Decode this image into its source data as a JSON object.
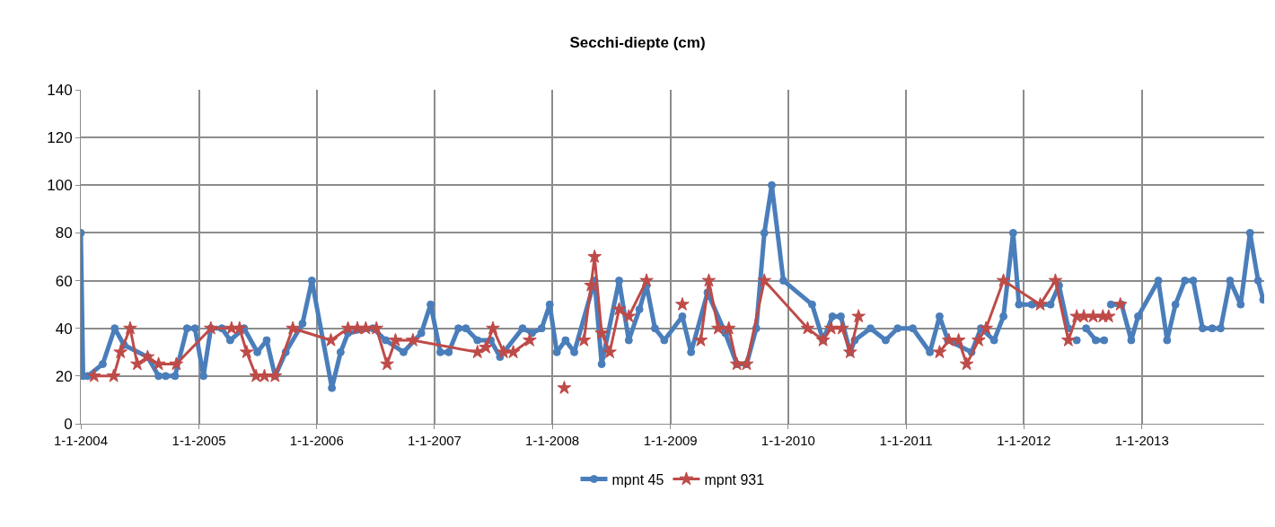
{
  "chart_data": {
    "type": "line",
    "title": "Secchi-diepte (cm)",
    "xlim": [
      "2004-01-01",
      "2014-01-15"
    ],
    "xticks": [
      {
        "value": "2004-01-01",
        "label": "1-1-2004"
      },
      {
        "value": "2005-01-01",
        "label": "1-1-2005"
      },
      {
        "value": "2006-01-01",
        "label": "1-1-2006"
      },
      {
        "value": "2007-01-01",
        "label": "1-1-2007"
      },
      {
        "value": "2008-01-01",
        "label": "1-1-2008"
      },
      {
        "value": "2009-01-01",
        "label": "1-1-2009"
      },
      {
        "value": "2010-01-01",
        "label": "1-1-2010"
      },
      {
        "value": "2011-01-01",
        "label": "1-1-2011"
      },
      {
        "value": "2012-01-01",
        "label": "1-1-2012"
      },
      {
        "value": "2013-01-01",
        "label": "1-1-2013"
      }
    ],
    "ylim": [
      0,
      140
    ],
    "yticks": [
      0,
      20,
      40,
      60,
      80,
      100,
      120,
      140
    ],
    "grid": true,
    "legend": "bottom",
    "series": [
      {
        "name": "mpnt 45",
        "color": "#4a7ebb",
        "marker": "circle",
        "x": [
          "2004-01-01",
          "2004-01-08",
          "2004-01-22",
          "2004-03-09",
          "2004-04-15",
          "2004-05-14",
          "2004-07-26",
          "2004-08-29",
          "2004-09-20",
          "2004-10-19",
          "2004-11-25",
          "2004-12-20",
          "2005-01-15",
          "2005-02-07",
          "2005-03-13",
          "2005-04-08",
          "2005-05-21",
          "2005-07-01",
          "2005-07-30",
          "2005-08-25",
          "2005-09-27",
          "2005-11-18",
          "2005-12-17",
          "2006-02-17",
          "2006-03-16",
          "2006-04-08",
          "2006-06-24",
          "2006-08-03",
          "2006-09-27",
          "2006-11-21",
          "2006-12-20",
          "2007-01-19",
          "2007-02-14",
          "2007-03-16",
          "2007-04-08",
          "2007-05-14",
          "2007-06-24",
          "2007-07-23",
          "2007-10-01",
          "2007-10-30",
          "2007-11-29",
          "2007-12-24",
          "2008-01-15",
          "2008-02-11",
          "2008-03-09",
          "2008-05-11",
          "2008-06-02",
          "2008-07-26",
          "2008-08-25",
          "2008-09-27",
          "2008-10-19",
          "2008-11-14",
          "2008-12-13",
          "2009-02-07",
          "2009-03-06",
          "2009-04-26",
          "2009-06-20",
          "2009-07-26",
          "2009-08-25",
          "2009-09-24",
          "2009-10-19",
          "2009-11-11",
          "2009-12-17",
          "2010-03-16",
          "2010-04-19",
          "2010-05-18",
          "2010-06-13",
          "2010-07-12",
          "2010-07-26",
          "2010-09-13",
          "2010-10-30",
          "2010-12-06",
          "2011-01-22",
          "2011-03-16",
          "2011-04-15",
          "2011-05-11",
          "2011-07-23",
          "2011-08-21",
          "2011-10-01",
          "2011-10-30",
          "2011-11-29",
          "2011-12-17",
          "2012-01-26",
          "2012-03-24",
          "2012-04-19",
          "2012-05-18",
          "2012-06-02",
          "2012-06-13",
          "2012-06-27",
          "2012-07-12",
          "2012-08-11",
          "2012-09-06",
          "2012-09-17",
          "2012-09-27",
          "2012-10-30",
          "2012-11-29",
          "2012-12-20",
          "2013-02-21",
          "2013-03-20",
          "2013-04-15",
          "2013-05-14",
          "2013-06-09",
          "2013-07-08",
          "2013-08-07",
          "2013-09-02",
          "2013-10-01",
          "2013-11-03",
          "2013-12-02",
          "2013-12-27",
          "2014-01-12"
        ],
        "values": [
          80,
          20,
          20,
          25,
          40,
          33,
          28,
          20,
          20,
          20,
          40,
          40,
          20,
          40,
          40,
          35,
          40,
          30,
          35,
          20,
          30,
          42,
          60,
          15,
          30,
          38,
          40,
          35,
          30,
          38,
          50,
          30,
          30,
          40,
          40,
          35,
          35,
          28,
          40,
          38,
          40,
          50,
          30,
          35,
          30,
          60,
          25,
          60,
          35,
          48,
          58,
          40,
          35,
          45,
          30,
          55,
          38,
          25,
          25,
          40,
          80,
          100,
          60,
          50,
          35,
          45,
          45,
          30,
          35,
          40,
          35,
          40,
          40,
          30,
          45,
          35,
          30,
          40,
          35,
          45,
          80,
          50,
          50,
          50,
          58,
          40,
          null,
          35,
          null,
          40,
          35,
          35,
          null,
          50,
          50,
          35,
          45,
          60,
          35,
          50,
          60,
          60,
          40,
          40,
          40,
          60,
          50,
          80,
          60,
          52
        ]
      },
      {
        "name": "mpnt 931",
        "color": "#be4b48",
        "marker": "star",
        "x": [
          "2004-02-11",
          "2004-04-12",
          "2004-05-03",
          "2004-06-02",
          "2004-06-24",
          "2004-07-26",
          "2004-08-29",
          "2004-10-23",
          "2005-02-07",
          "2005-04-12",
          "2005-05-07",
          "2005-05-29",
          "2005-06-27",
          "2005-07-23",
          "2005-08-25",
          "2005-10-19",
          "2006-02-14",
          "2006-04-08",
          "2006-05-07",
          "2006-06-02",
          "2006-07-05",
          "2006-08-07",
          "2006-09-02",
          "2006-10-26",
          "2007-05-14",
          "2007-06-09",
          "2007-07-01",
          "2007-08-03",
          "2007-09-02",
          "2007-10-23",
          "2007-12-13",
          "2008-02-07",
          "2008-03-06",
          "2008-04-08",
          "2008-04-30",
          "2008-05-11",
          "2008-06-02",
          "2008-06-27",
          "2008-07-26",
          "2008-08-25",
          "2008-10-19",
          "2008-12-13",
          "2009-02-07",
          "2009-03-06",
          "2009-04-05",
          "2009-04-30",
          "2009-05-29",
          "2009-07-01",
          "2009-07-26",
          "2009-08-25",
          "2009-10-19",
          "2010-03-02",
          "2010-04-19",
          "2010-05-14",
          "2010-06-17",
          "2010-07-12",
          "2010-08-07",
          "2010-11-25",
          "2011-04-15",
          "2011-05-14",
          "2011-06-13",
          "2011-07-08",
          "2011-08-14",
          "2011-09-06",
          "2011-10-30",
          "2012-02-21",
          "2012-04-08",
          "2012-05-18",
          "2012-06-13",
          "2012-07-05",
          "2012-08-03",
          "2012-09-02",
          "2012-09-20",
          "2012-10-08",
          "2012-10-26"
        ],
        "values": [
          20,
          20,
          30,
          40,
          25,
          28,
          25,
          25,
          40,
          40,
          40,
          30,
          20,
          20,
          20,
          40,
          35,
          40,
          40,
          40,
          40,
          25,
          35,
          35,
          30,
          32,
          40,
          30,
          30,
          35,
          null,
          15,
          null,
          35,
          58,
          70,
          38,
          30,
          48,
          45,
          60,
          null,
          50,
          null,
          35,
          60,
          40,
          40,
          25,
          25,
          60,
          40,
          35,
          40,
          40,
          30,
          45,
          null,
          30,
          35,
          35,
          25,
          35,
          40,
          60,
          50,
          60,
          35,
          45,
          45,
          45,
          45,
          45,
          null,
          50
        ]
      }
    ]
  }
}
